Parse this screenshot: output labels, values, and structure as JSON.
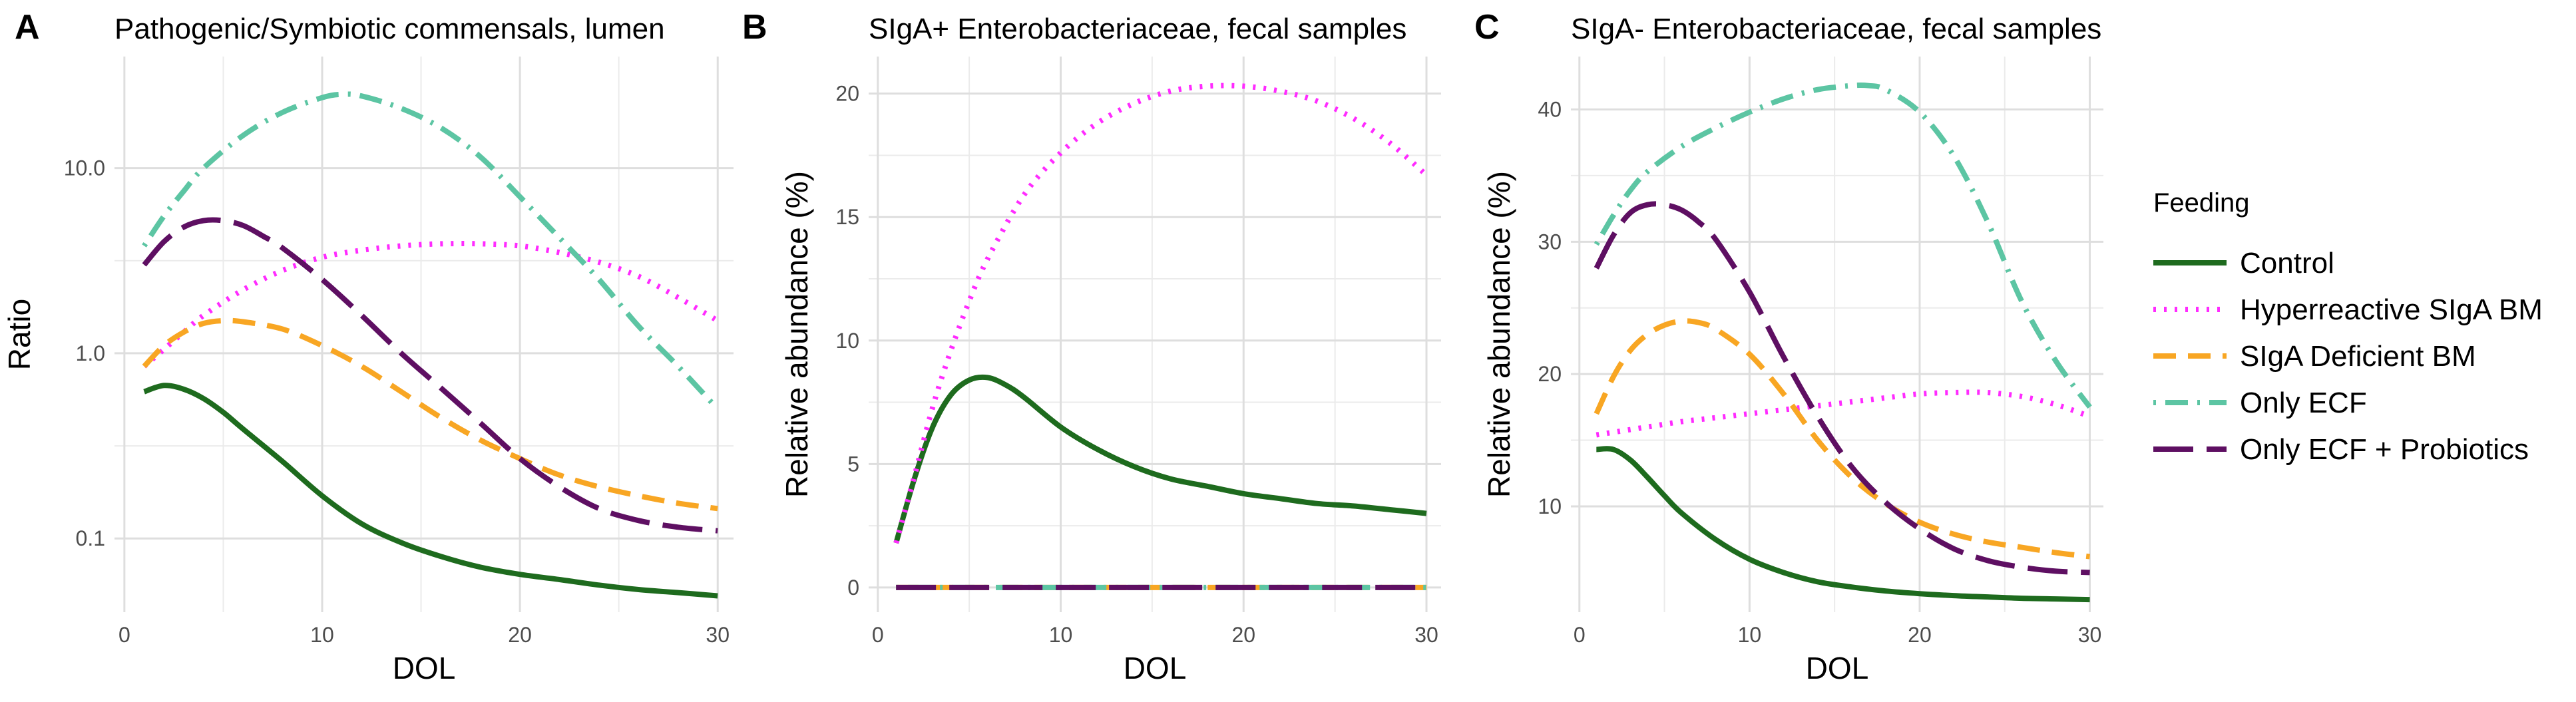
{
  "legend": {
    "title": "Feeding",
    "position": "right"
  },
  "series_styles": [
    {
      "name": "Control",
      "color": "#1e6b1e",
      "linestyle": "solid"
    },
    {
      "name": "Hyperreactive SIgA BM",
      "color": "#ff2bff",
      "linestyle": "dotted"
    },
    {
      "name": "SIgA Deficient BM",
      "color": "#f8a623",
      "linestyle": "dashed"
    },
    {
      "name": "Only ECF",
      "color": "#5cc5a3",
      "linestyle": "dotdash"
    },
    {
      "name": "Only ECF + Probiotics",
      "color": "#5e0f62",
      "linestyle": "longdash"
    }
  ],
  "chart_data": [
    {
      "panel": "A",
      "type": "line",
      "title": "Pathogenic/Symbiotic commensals, lumen",
      "xlabel": "DOL",
      "ylabel": "Ratio",
      "yscale": "log10",
      "xlim": [
        -0.5,
        30.8
      ],
      "ylim": [
        0.04,
        40
      ],
      "xticks": [
        0,
        10,
        20,
        30
      ],
      "yticks": [
        0.1,
        1.0,
        10.0
      ],
      "ytick_labels": [
        "0.1",
        "1.0",
        "10.0"
      ],
      "grid": true,
      "series": [
        {
          "name": "Control",
          "x": [
            1,
            2,
            3,
            4,
            5,
            6,
            8,
            10,
            12,
            14,
            16,
            18,
            20,
            22,
            24,
            26,
            28,
            30
          ],
          "values": [
            0.62,
            0.67,
            0.64,
            0.57,
            0.48,
            0.39,
            0.26,
            0.17,
            0.12,
            0.095,
            0.08,
            0.07,
            0.064,
            0.06,
            0.056,
            0.053,
            0.051,
            0.049
          ]
        },
        {
          "name": "Hyperreactive SIgA BM",
          "x": [
            1,
            2,
            3,
            4,
            6,
            8,
            10,
            12,
            14,
            16,
            18,
            20,
            22,
            24,
            26,
            28,
            30
          ],
          "values": [
            0.85,
            1.05,
            1.3,
            1.6,
            2.2,
            2.8,
            3.3,
            3.6,
            3.8,
            3.9,
            3.9,
            3.8,
            3.5,
            3.1,
            2.6,
            2.0,
            1.5
          ]
        },
        {
          "name": "SIgA Deficient BM",
          "x": [
            1,
            2,
            3,
            4,
            5,
            6,
            8,
            10,
            12,
            14,
            16,
            18,
            20,
            22,
            24,
            26,
            28,
            30
          ],
          "values": [
            0.85,
            1.1,
            1.3,
            1.45,
            1.5,
            1.48,
            1.35,
            1.1,
            0.85,
            0.62,
            0.45,
            0.34,
            0.27,
            0.22,
            0.19,
            0.17,
            0.155,
            0.145
          ]
        },
        {
          "name": "Only ECF",
          "x": [
            1,
            2,
            3,
            4,
            6,
            8,
            10,
            11,
            12,
            14,
            16,
            18,
            20,
            22,
            24,
            26,
            28,
            30
          ],
          "values": [
            3.8,
            5.5,
            7.5,
            10.0,
            15.0,
            20.0,
            24.0,
            25.0,
            24.5,
            21.0,
            16.5,
            11.5,
            7.0,
            4.2,
            2.5,
            1.4,
            0.85,
            0.5
          ]
        },
        {
          "name": "Only ECF + Probiotics",
          "x": [
            1,
            2,
            3,
            4,
            5,
            6,
            7,
            8,
            10,
            12,
            14,
            16,
            18,
            20,
            22,
            24,
            26,
            28,
            30
          ],
          "values": [
            3.0,
            4.0,
            4.8,
            5.2,
            5.2,
            4.9,
            4.3,
            3.7,
            2.5,
            1.6,
            1.0,
            0.65,
            0.42,
            0.27,
            0.19,
            0.145,
            0.125,
            0.115,
            0.11
          ]
        }
      ]
    },
    {
      "panel": "B",
      "type": "line",
      "title": "SIgA+ Enterobacteriaceae, fecal samples",
      "xlabel": "DOL",
      "ylabel": "Relative abundance (%)",
      "yscale": "linear",
      "xlim": [
        -0.5,
        30.8
      ],
      "ylim": [
        -1,
        21.5
      ],
      "xticks": [
        0,
        10,
        20,
        30
      ],
      "yticks": [
        0,
        5,
        10,
        15,
        20
      ],
      "ytick_labels": [
        "0",
        "5",
        "10",
        "15",
        "20"
      ],
      "grid": true,
      "series": [
        {
          "name": "Control",
          "x": [
            1,
            2,
            3,
            4,
            5,
            6,
            7,
            8,
            10,
            12,
            14,
            16,
            18,
            20,
            22,
            24,
            26,
            28,
            30
          ],
          "values": [
            1.8,
            4.4,
            6.5,
            7.8,
            8.4,
            8.5,
            8.2,
            7.7,
            6.5,
            5.6,
            4.9,
            4.4,
            4.1,
            3.8,
            3.6,
            3.4,
            3.3,
            3.15,
            3.0
          ]
        },
        {
          "name": "Hyperreactive SIgA BM",
          "x": [
            1,
            2,
            3,
            4,
            5,
            6,
            8,
            10,
            12,
            14,
            16,
            18,
            20,
            22,
            24,
            26,
            28,
            30
          ],
          "values": [
            1.8,
            4.5,
            7.3,
            9.6,
            11.6,
            13.3,
            15.9,
            17.6,
            18.8,
            19.6,
            20.1,
            20.3,
            20.3,
            20.1,
            19.7,
            19.0,
            18.0,
            16.7
          ]
        },
        {
          "name": "SIgA Deficient BM",
          "x": [
            1,
            30
          ],
          "values": [
            0,
            0
          ]
        },
        {
          "name": "Only ECF",
          "x": [
            1,
            30
          ],
          "values": [
            0,
            0
          ]
        },
        {
          "name": "Only ECF + Probiotics",
          "x": [
            1,
            30
          ],
          "values": [
            0,
            0
          ]
        }
      ]
    },
    {
      "panel": "C",
      "type": "line",
      "title": "SIgA- Enterobacteriaceae, fecal samples",
      "xlabel": "DOL",
      "ylabel": "Relative abundance (%)",
      "yscale": "linear",
      "xlim": [
        -0.5,
        30.8
      ],
      "ylim": [
        2,
        44
      ],
      "xticks": [
        0,
        10,
        20,
        30
      ],
      "yticks": [
        10,
        20,
        30,
        40
      ],
      "ytick_labels": [
        "10",
        "20",
        "30",
        "40"
      ],
      "grid": true,
      "series": [
        {
          "name": "Control",
          "x": [
            1,
            2,
            3,
            4,
            5,
            6,
            8,
            10,
            12,
            14,
            16,
            18,
            20,
            22,
            24,
            26,
            28,
            30
          ],
          "values": [
            14.3,
            14.3,
            13.5,
            12.2,
            10.8,
            9.5,
            7.5,
            6.0,
            5.0,
            4.3,
            3.9,
            3.6,
            3.4,
            3.25,
            3.15,
            3.05,
            3.0,
            2.95
          ]
        },
        {
          "name": "Hyperreactive SIgA BM",
          "x": [
            1,
            2,
            4,
            6,
            8,
            10,
            12,
            14,
            16,
            18,
            20,
            22,
            24,
            26,
            28,
            30
          ],
          "values": [
            15.4,
            15.6,
            16.0,
            16.4,
            16.7,
            17.0,
            17.3,
            17.6,
            17.9,
            18.2,
            18.5,
            18.6,
            18.6,
            18.3,
            17.7,
            16.8
          ]
        },
        {
          "name": "SIgA Deficient BM",
          "x": [
            1,
            2,
            3,
            4,
            5,
            6,
            7,
            8,
            10,
            12,
            14,
            16,
            18,
            20,
            22,
            24,
            26,
            28,
            30
          ],
          "values": [
            17.0,
            19.8,
            21.8,
            23.0,
            23.7,
            24.0,
            23.9,
            23.4,
            21.5,
            18.5,
            15.0,
            12.2,
            10.2,
            8.8,
            7.9,
            7.3,
            6.9,
            6.5,
            6.2
          ]
        },
        {
          "name": "Only ECF",
          "x": [
            1,
            2,
            3,
            4,
            6,
            8,
            10,
            12,
            14,
            16,
            17,
            18,
            20,
            22,
            24,
            26,
            28,
            30
          ],
          "values": [
            29.8,
            32.0,
            33.9,
            35.3,
            37.2,
            38.6,
            39.8,
            40.8,
            41.5,
            41.8,
            41.8,
            41.5,
            39.8,
            36.5,
            31.5,
            25.5,
            21.0,
            17.5
          ]
        },
        {
          "name": "Only ECF + Probiotics",
          "x": [
            1,
            2,
            3,
            4,
            5,
            6,
            7,
            8,
            10,
            12,
            14,
            16,
            18,
            20,
            22,
            24,
            26,
            28,
            30
          ],
          "values": [
            28.0,
            30.5,
            32.2,
            32.8,
            32.8,
            32.4,
            31.5,
            30.2,
            26.2,
            21.3,
            16.8,
            13.0,
            10.3,
            8.3,
            6.8,
            5.9,
            5.4,
            5.1,
            5.0
          ]
        }
      ]
    }
  ]
}
